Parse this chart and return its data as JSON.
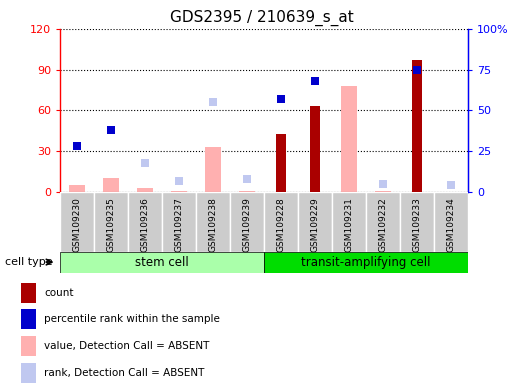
{
  "title": "GDS2395 / 210639_s_at",
  "samples": [
    "GSM109230",
    "GSM109235",
    "GSM109236",
    "GSM109237",
    "GSM109238",
    "GSM109239",
    "GSM109228",
    "GSM109229",
    "GSM109231",
    "GSM109232",
    "GSM109233",
    "GSM109234"
  ],
  "count": [
    null,
    null,
    null,
    null,
    null,
    null,
    43,
    63,
    null,
    null,
    97,
    null
  ],
  "percentile_rank": [
    28,
    38,
    null,
    null,
    null,
    null,
    57,
    68,
    null,
    null,
    75,
    null
  ],
  "value_absent": [
    5,
    10,
    3,
    1,
    33,
    1,
    null,
    null,
    78,
    1,
    null,
    null
  ],
  "rank_absent": [
    null,
    null,
    18,
    7,
    55,
    8,
    null,
    null,
    null,
    5,
    null,
    4
  ],
  "ylim_left": [
    0,
    120
  ],
  "ylim_right": [
    0,
    100
  ],
  "yticks_left": [
    0,
    30,
    60,
    90,
    120
  ],
  "ytick_labels_left": [
    "0",
    "30",
    "60",
    "90",
    "120"
  ],
  "yticks_right": [
    0,
    25,
    50,
    75,
    100
  ],
  "ytick_labels_right": [
    "0",
    "25",
    "50",
    "75",
    "100%"
  ],
  "color_count": "#AA0000",
  "color_percentile": "#0000CC",
  "color_value_absent": "#FFB0B0",
  "color_rank_absent": "#C0C8F0",
  "cell_type_bg_stem": "#AAFFAA",
  "cell_type_bg_transit": "#00DD00",
  "sample_box_color": "#CCCCCC",
  "legend_items": [
    {
      "label": "count",
      "color": "#AA0000"
    },
    {
      "label": "percentile rank within the sample",
      "color": "#0000CC"
    },
    {
      "label": "value, Detection Call = ABSENT",
      "color": "#FFB0B0"
    },
    {
      "label": "rank, Detection Call = ABSENT",
      "color": "#C0C8F0"
    }
  ]
}
